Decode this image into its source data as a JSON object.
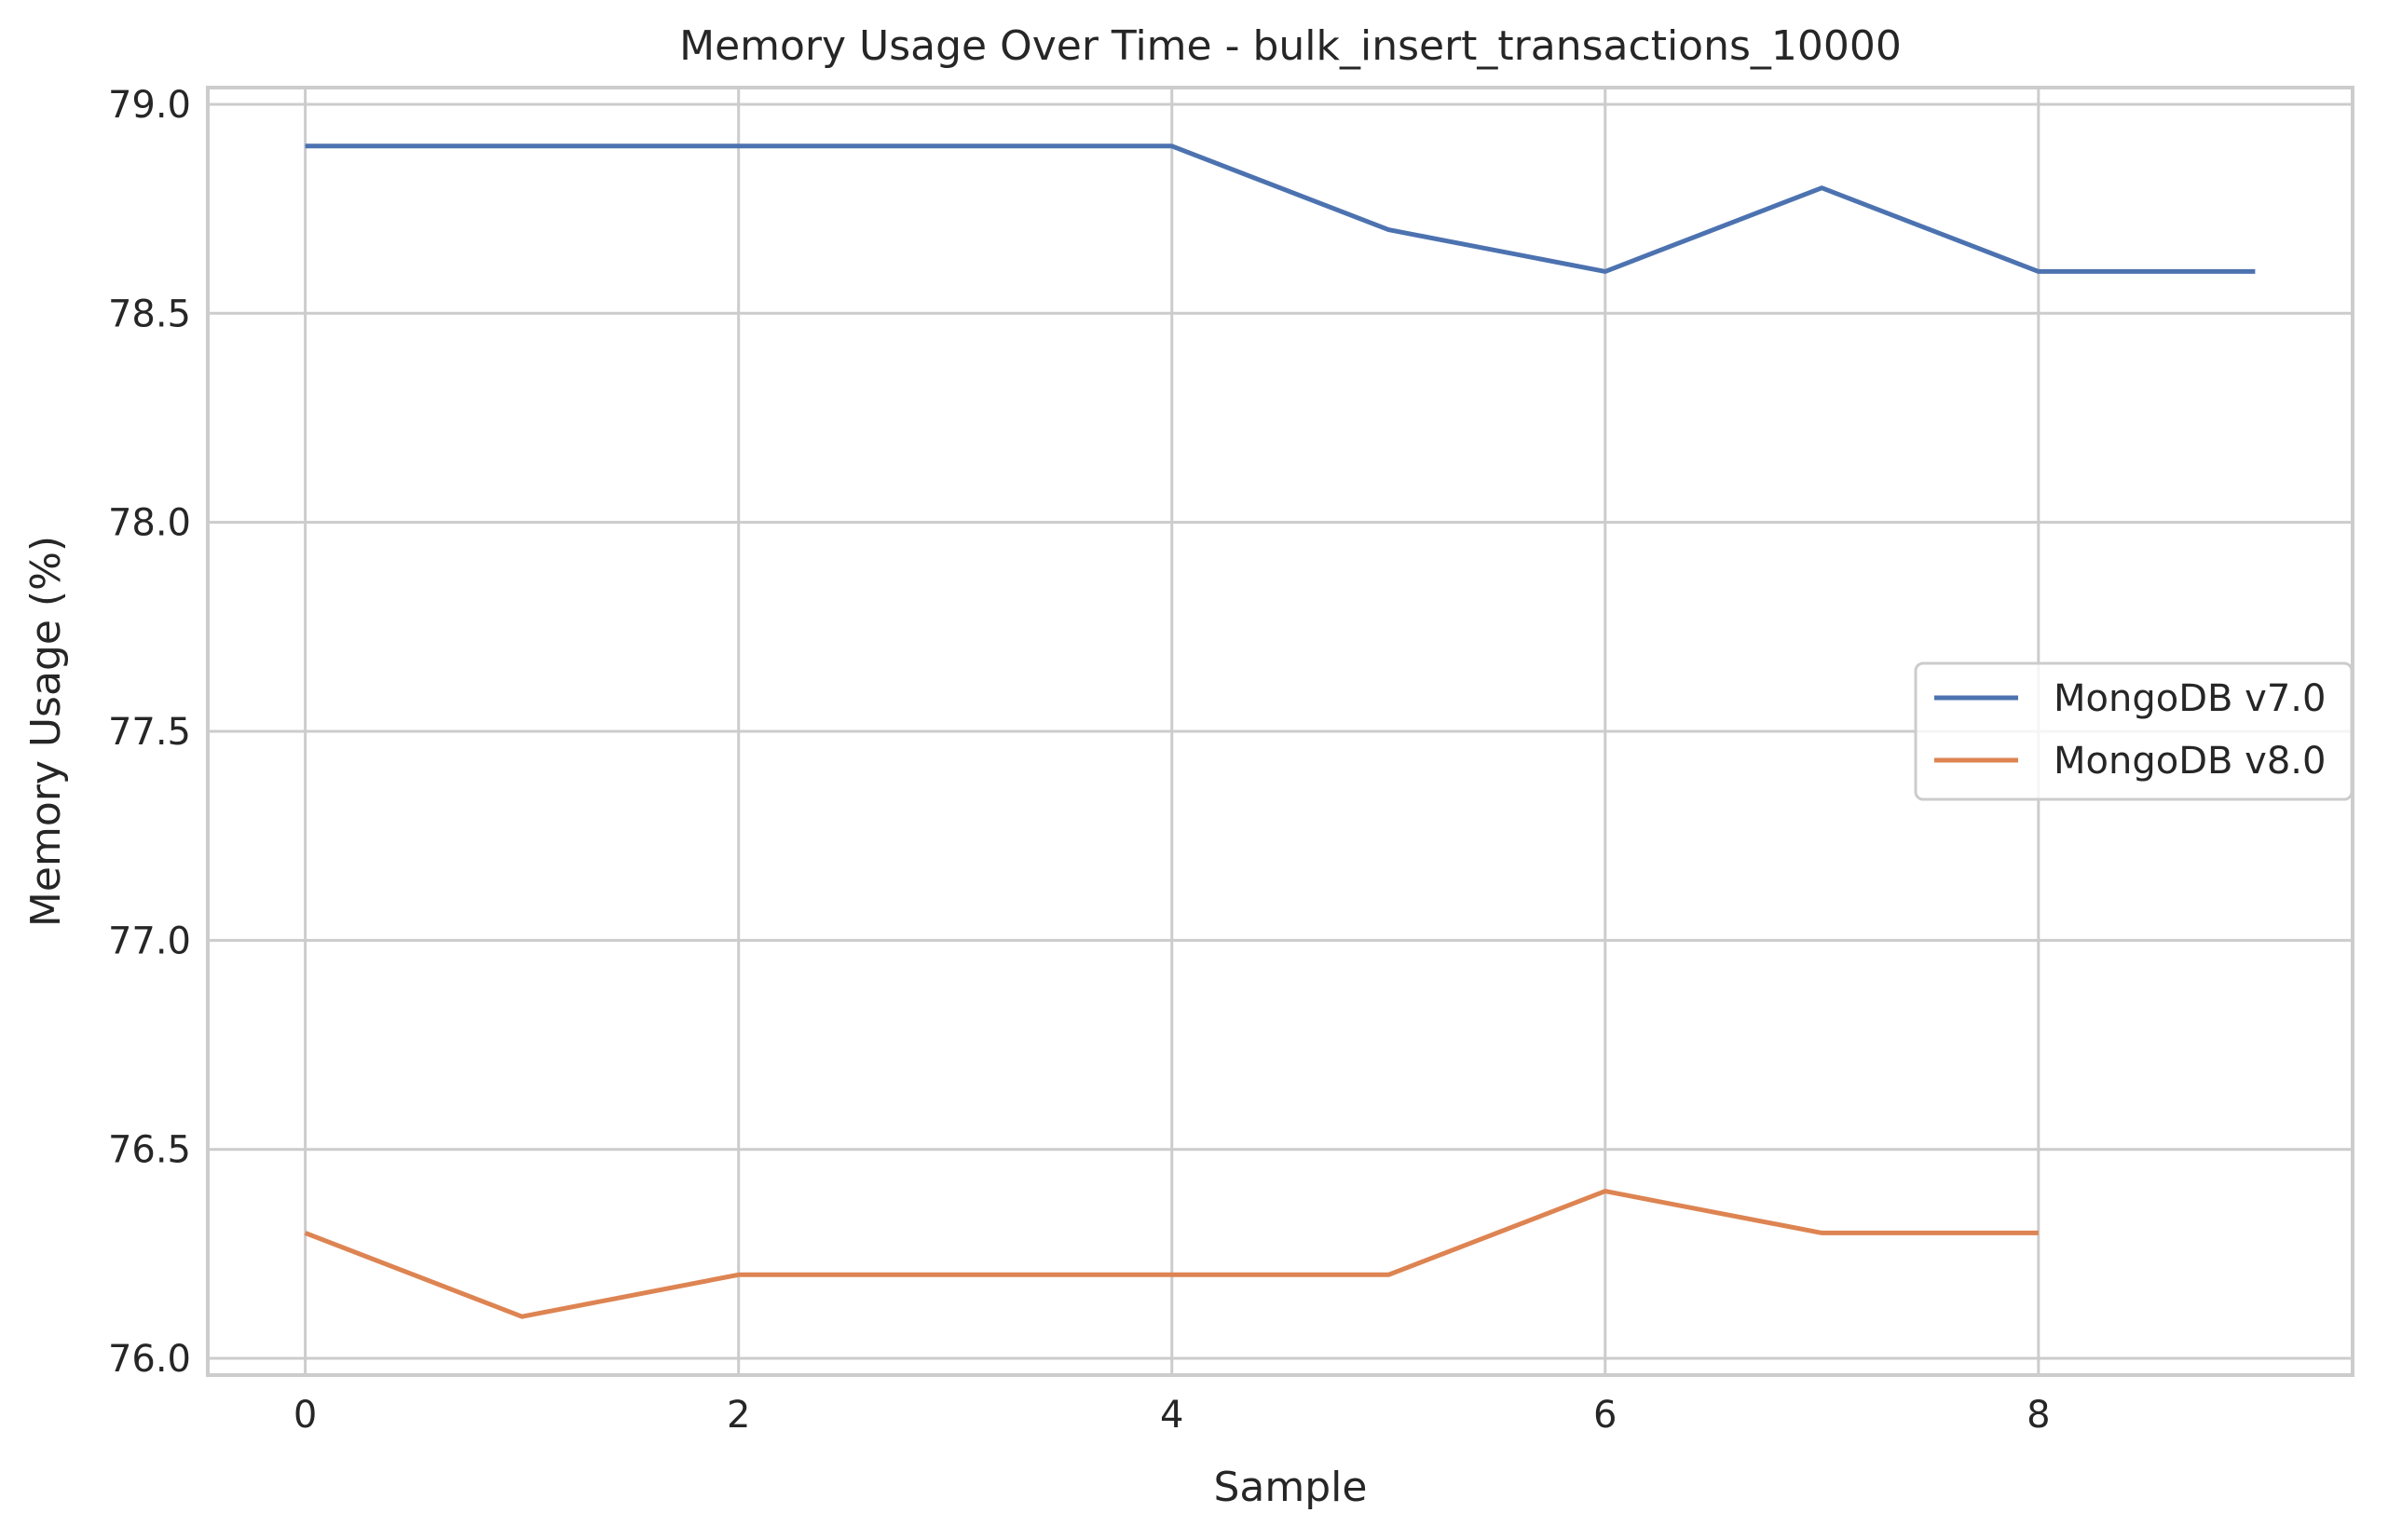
{
  "chart_data": {
    "type": "line",
    "title": "Memory Usage Over Time - bulk_insert_transactions_10000",
    "xlabel": "Sample",
    "ylabel": "Memory Usage (%)",
    "xlim": [
      -0.45,
      9.45
    ],
    "ylim": [
      75.96,
      79.04
    ],
    "xticks": [
      0,
      2,
      4,
      6,
      8
    ],
    "yticks": [
      76.0,
      76.5,
      77.0,
      77.5,
      78.0,
      78.5,
      79.0
    ],
    "ytick_labels": [
      "76.0",
      "76.5",
      "77.0",
      "77.5",
      "78.0",
      "78.5",
      "79.0"
    ],
    "grid": true,
    "legend_position": "center-right",
    "series": [
      {
        "name": "MongoDB v7.0",
        "color": "#4c72b0",
        "x": [
          0,
          1,
          2,
          3,
          4,
          5,
          6,
          7,
          8,
          9
        ],
        "values": [
          78.9,
          78.9,
          78.9,
          78.9,
          78.9,
          78.7,
          78.6,
          78.8,
          78.6,
          78.6
        ]
      },
      {
        "name": "MongoDB v8.0",
        "color": "#dd8452",
        "x": [
          0,
          1,
          2,
          3,
          4,
          5,
          6,
          7,
          8
        ],
        "values": [
          76.3,
          76.1,
          76.2,
          76.2,
          76.2,
          76.2,
          76.4,
          76.3,
          76.3
        ]
      }
    ]
  }
}
